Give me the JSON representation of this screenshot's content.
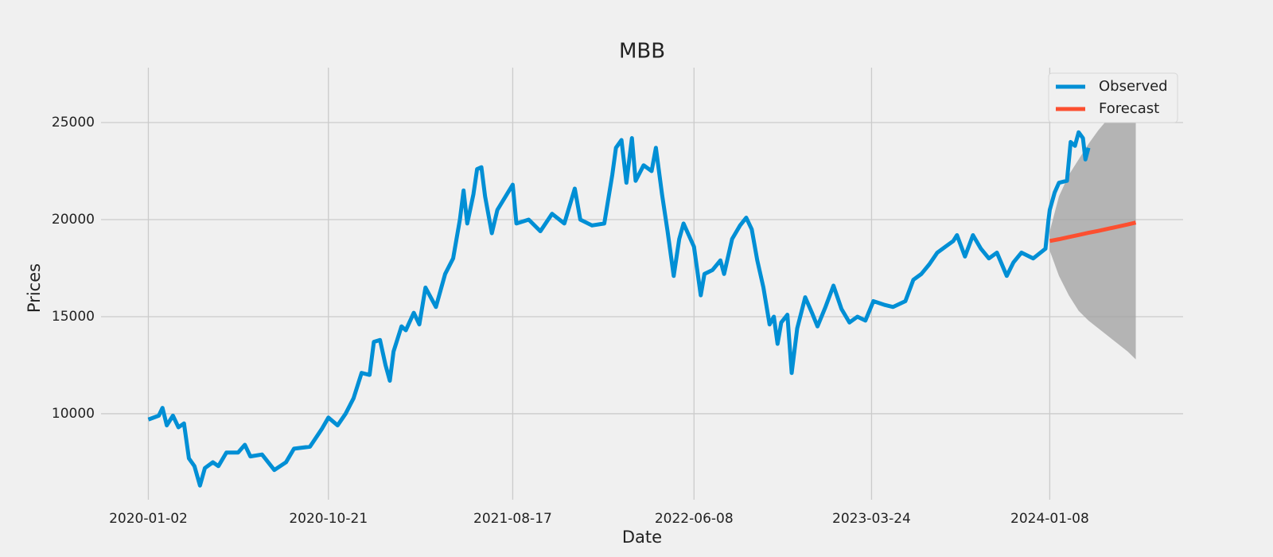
{
  "chart_data": {
    "type": "line",
    "title": "MBB",
    "xlabel": "Date",
    "ylabel": "Prices",
    "xlim": [
      "2019-10-17",
      "2024-08-12"
    ],
    "xticks": [
      "2020-01-02",
      "2020-10-21",
      "2021-08-17",
      "2022-06-08",
      "2023-03-24",
      "2024-01-08"
    ],
    "ylim": [
      5570,
      27830
    ],
    "yticks": [
      10000,
      15000,
      20000,
      25000
    ],
    "grid": true,
    "legend": "upper right",
    "series": [
      {
        "name": "Observed",
        "color": "#008fd5",
        "x": [
          "2020-01-02",
          "2020-01-19",
          "2020-01-25",
          "2020-02-01",
          "2020-02-11",
          "2020-02-20",
          "2020-02-29",
          "2020-03-08",
          "2020-03-17",
          "2020-03-26",
          "2020-04-03",
          "2020-04-16",
          "2020-04-25",
          "2020-05-08",
          "2020-05-27",
          "2020-06-07",
          "2020-06-16",
          "2020-07-05",
          "2020-07-25",
          "2020-08-13",
          "2020-08-26",
          "2020-09-21",
          "2020-10-10",
          "2020-10-21",
          "2020-11-05",
          "2020-11-18",
          "2020-12-01",
          "2020-12-14",
          "2020-12-27",
          "2021-01-03",
          "2021-01-13",
          "2021-01-22",
          "2021-01-29",
          "2021-02-04",
          "2021-02-17",
          "2021-02-24",
          "2021-03-09",
          "2021-03-18",
          "2021-03-28",
          "2021-04-14",
          "2021-04-29",
          "2021-05-12",
          "2021-05-23",
          "2021-05-29",
          "2021-06-04",
          "2021-06-14",
          "2021-06-20",
          "2021-06-27",
          "2021-07-03",
          "2021-07-14",
          "2021-07-23",
          "2021-08-17",
          "2021-08-23",
          "2021-09-12",
          "2021-10-01",
          "2021-10-20",
          "2021-11-09",
          "2021-11-26",
          "2021-12-05",
          "2021-12-24",
          "2022-01-13",
          "2022-01-26",
          "2022-02-01",
          "2022-02-10",
          "2022-02-18",
          "2022-02-27",
          "2022-03-05",
          "2022-03-18",
          "2022-03-31",
          "2022-04-07",
          "2022-04-17",
          "2022-04-26",
          "2022-05-06",
          "2022-05-15",
          "2022-05-22",
          "2022-06-08",
          "2022-06-19",
          "2022-06-25",
          "2022-07-08",
          "2022-07-21",
          "2022-07-27",
          "2022-08-09",
          "2022-08-22",
          "2022-09-01",
          "2022-09-10",
          "2022-09-19",
          "2022-09-29",
          "2022-10-09",
          "2022-10-16",
          "2022-10-22",
          "2022-10-28",
          "2022-11-07",
          "2022-11-14",
          "2022-11-23",
          "2022-12-06",
          "2022-12-17",
          "2022-12-26",
          "2023-01-08",
          "2023-01-21",
          "2023-02-03",
          "2023-02-16",
          "2023-03-01",
          "2023-03-14",
          "2023-03-27",
          "2023-04-15",
          "2023-04-28",
          "2023-05-18",
          "2023-05-31",
          "2023-06-13",
          "2023-06-26",
          "2023-07-09",
          "2023-07-22",
          "2023-08-04",
          "2023-08-10",
          "2023-08-23",
          "2023-09-05",
          "2023-09-18",
          "2023-10-01",
          "2023-10-14",
          "2023-10-30",
          "2023-11-10",
          "2023-11-23",
          "2023-12-12",
          "2024-01-01",
          "2024-01-06",
          "2024-01-08",
          "2024-01-16",
          "2024-01-23",
          "2024-02-05",
          "2024-02-11",
          "2024-02-18",
          "2024-02-24",
          "2024-03-02",
          "2024-03-06",
          "2024-03-11"
        ],
        "values": [
          9700,
          9900,
          10300,
          9400,
          9900,
          9300,
          9500,
          7700,
          7300,
          6300,
          7200,
          7500,
          7300,
          8000,
          8000,
          8400,
          7800,
          7900,
          7100,
          7500,
          8200,
          8300,
          9200,
          9800,
          9400,
          10000,
          10800,
          12100,
          12000,
          13700,
          13800,
          12500,
          11700,
          13200,
          14500,
          14300,
          15200,
          14600,
          16500,
          15500,
          17200,
          18000,
          20000,
          21500,
          19800,
          21300,
          22600,
          22700,
          21200,
          19300,
          20500,
          21800,
          19800,
          20000,
          19400,
          20300,
          19800,
          21600,
          20000,
          19700,
          19800,
          22300,
          23700,
          24100,
          21900,
          24200,
          22000,
          22800,
          22500,
          23700,
          21300,
          19400,
          17100,
          19000,
          19800,
          18600,
          16100,
          17200,
          17400,
          17900,
          17200,
          19000,
          19700,
          20100,
          19500,
          17900,
          16500,
          14600,
          15000,
          13600,
          14700,
          15100,
          12100,
          14400,
          16000,
          15200,
          14500,
          15500,
          16600,
          15400,
          14700,
          15000,
          14800,
          15800,
          15600,
          15500,
          15800,
          16900,
          17200,
          17700,
          18300,
          18600,
          18900,
          19200,
          18100,
          19200,
          18500,
          18000,
          18300,
          17100,
          17800,
          18300,
          18000,
          18500,
          20000,
          20500,
          21400,
          21900,
          22000,
          24000,
          23800,
          24500,
          24200,
          23100,
          23700
        ]
      },
      {
        "name": "Forecast",
        "color": "#fc4f30",
        "band_color": "#a0a0a0",
        "x": [
          "2024-01-08",
          "2024-01-23",
          "2024-02-08",
          "2024-02-24",
          "2024-03-11",
          "2024-03-27",
          "2024-04-12",
          "2024-04-28",
          "2024-05-14",
          "2024-05-27"
        ],
        "values": [
          18900,
          18990,
          19100,
          19210,
          19320,
          19420,
          19530,
          19640,
          19750,
          19850
        ],
        "lower": [
          18400,
          17100,
          16100,
          15300,
          14800,
          14400,
          14000,
          13600,
          13200,
          12800
        ],
        "upper": [
          19400,
          21200,
          22300,
          23100,
          23900,
          24600,
          25200,
          25800,
          26200,
          26600
        ]
      }
    ]
  }
}
